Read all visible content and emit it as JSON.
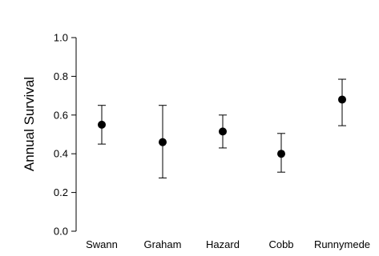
{
  "chart_data": {
    "type": "scatter",
    "title": "",
    "xlabel": "",
    "ylabel": "Annual Survival",
    "ylim": [
      0.0,
      1.0
    ],
    "yticks": [
      "0.0",
      "0.2",
      "0.4",
      "0.6",
      "0.8",
      "1.0"
    ],
    "grid": false,
    "categories": [
      "Swann",
      "Graham",
      "Hazard",
      "Cobb",
      "Runnymede"
    ],
    "values": [
      0.55,
      0.46,
      0.515,
      0.4,
      0.68
    ],
    "error_low": [
      0.45,
      0.275,
      0.43,
      0.305,
      0.545
    ],
    "error_high": [
      0.65,
      0.65,
      0.6,
      0.505,
      0.785
    ],
    "colors": {
      "marker": "#000000",
      "axis": "#000000"
    }
  }
}
